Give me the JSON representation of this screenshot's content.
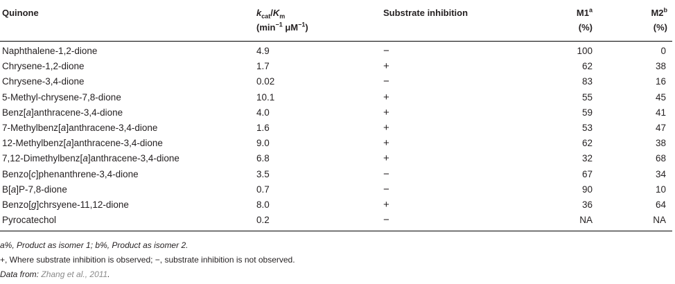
{
  "header": {
    "quinone": "Quinone",
    "kcat_k": "k",
    "kcat_cat": "cat",
    "kcat_slash": "/",
    "kcat_K": "K",
    "kcat_m": "m",
    "kcat_units_pre": "(min",
    "kcat_units_sup": "−1",
    "kcat_units_mid": " μM",
    "kcat_units_sup2": "−1",
    "kcat_units_post": ")",
    "substrate": "Substrate inhibition",
    "m1": "M1",
    "m1_sup": "a",
    "m1_unit": "(%)",
    "m2": "M2",
    "m2_sup": "b",
    "m2_unit": "(%)"
  },
  "rows": [
    {
      "pre": "Naphthalene-1,2-dione",
      "it": "",
      "post": "",
      "kcat": "4.9",
      "sub": "−",
      "m1": "100",
      "m2": "0"
    },
    {
      "pre": "Chrysene-1,2-dione",
      "it": "",
      "post": "",
      "kcat": "1.7",
      "sub": "+",
      "m1": "62",
      "m2": "38"
    },
    {
      "pre": "Chrysene-3,4-dione",
      "it": "",
      "post": "",
      "kcat": "0.02",
      "sub": "−",
      "m1": "83",
      "m2": "16"
    },
    {
      "pre": "5-Methyl-chrysene-7,8-dione",
      "it": "",
      "post": "",
      "kcat": "10.1",
      "sub": "+",
      "m1": "55",
      "m2": "45"
    },
    {
      "pre": "Benz[",
      "it": "a",
      "post": "]anthracene-3,4-dione",
      "kcat": "4.0",
      "sub": "+",
      "m1": "59",
      "m2": "41"
    },
    {
      "pre": "7-Methylbenz[",
      "it": "a",
      "post": "]anthracene-3,4-dione",
      "kcat": "1.6",
      "sub": "+",
      "m1": "53",
      "m2": "47"
    },
    {
      "pre": "12-Methylbenz[",
      "it": "a",
      "post": "]anthracene-3,4-dione",
      "kcat": "9.0",
      "sub": "+",
      "m1": "62",
      "m2": "38"
    },
    {
      "pre": "7,12-Dimethylbenz[",
      "it": "a",
      "post": "]anthracene-3,4-dione",
      "kcat": "6.8",
      "sub": "+",
      "m1": "32",
      "m2": "68"
    },
    {
      "pre": "Benzo[",
      "it": "c",
      "post": "]phenanthrene-3,4-dione",
      "kcat": "3.5",
      "sub": "−",
      "m1": "67",
      "m2": "34"
    },
    {
      "pre": "B[",
      "it": "a",
      "post": "]P-7,8-dione",
      "kcat": "0.7",
      "sub": "−",
      "m1": "90",
      "m2": "10"
    },
    {
      "pre": "Benzo[",
      "it": "g",
      "post": "]chrsyene-11,12-dione",
      "kcat": "8.0",
      "sub": "+",
      "m1": "36",
      "m2": "64"
    },
    {
      "pre": "Pyrocatechol",
      "it": "",
      "post": "",
      "kcat": "0.2",
      "sub": "−",
      "m1": "NA",
      "m2": "NA"
    }
  ],
  "footnotes": {
    "line1": "a%, Product as isomer 1; b%, Product as isomer 2.",
    "line2": "+, Where substrate inhibition is observed; −, substrate inhibition is not observed.",
    "line3_label": "Data from:",
    "line3_ref": "Zhang et al., 2011",
    "line3_end": "."
  }
}
